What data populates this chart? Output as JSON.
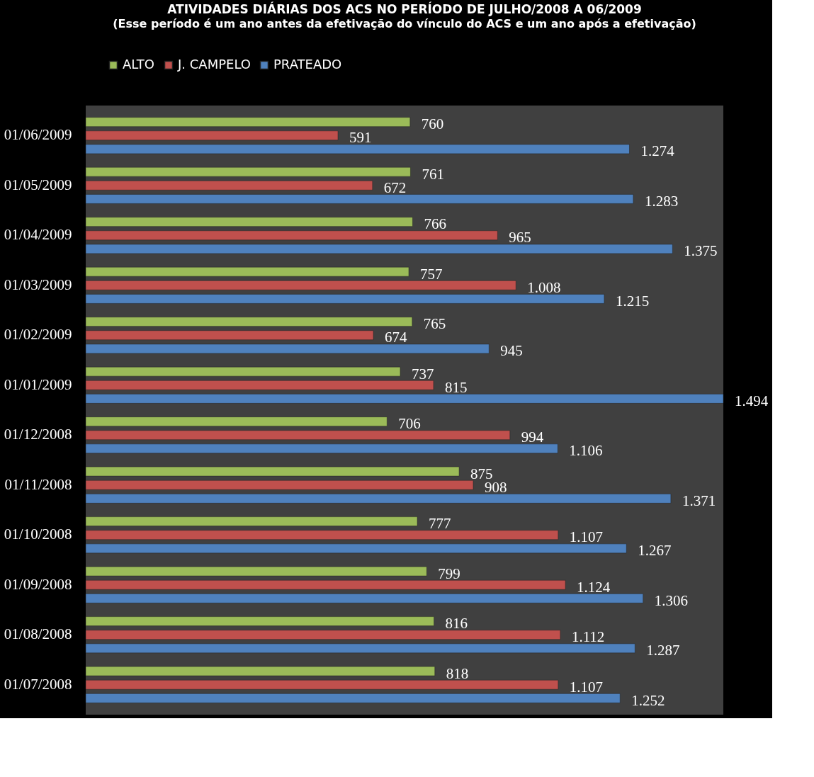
{
  "chart_data": {
    "type": "bar",
    "orientation": "horizontal",
    "title": "ATIVIDADES DIÁRIAS DOS ACS NO PERÍODO DE JULHO/2008 A 06/2009",
    "subtitle": "(Esse período é um ano antes da efetivação do vínculo do ACS e um ano após a efetivação)",
    "categories": [
      "01/06/2009",
      "01/05/2009",
      "01/04/2009",
      "01/03/2009",
      "01/02/2009",
      "01/01/2009",
      "01/12/2008",
      "01/11/2008",
      "01/10/2008",
      "01/09/2008",
      "01/08/2008",
      "01/07/2008"
    ],
    "series": [
      {
        "name": "ALTO",
        "color": "#9bbb59",
        "values": [
          760,
          761,
          766,
          757,
          765,
          737,
          706,
          875,
          777,
          799,
          816,
          818
        ],
        "value_labels": [
          "760",
          "761",
          "766",
          "757",
          "765",
          "737",
          "706",
          "875",
          "777",
          "799",
          "816",
          "818"
        ]
      },
      {
        "name": "J. CAMPELO",
        "color": "#c0504d",
        "values": [
          591,
          672,
          965,
          1008,
          674,
          815,
          994,
          908,
          1107,
          1124,
          1112,
          1107
        ],
        "value_labels": [
          "591",
          "672",
          "965",
          "1.008",
          "674",
          "815",
          "994",
          "908",
          "1.107",
          "1.124",
          "1.112",
          "1.107"
        ]
      },
      {
        "name": "PRATEADO",
        "color": "#4f81bd",
        "values": [
          1274,
          1283,
          1375,
          1215,
          945,
          1494,
          1106,
          1371,
          1267,
          1306,
          1287,
          1252
        ],
        "value_labels": [
          "1.274",
          "1.283",
          "1.375",
          "1.215",
          "945",
          "1.494",
          "1.106",
          "1.371",
          "1.267",
          "1.306",
          "1.287",
          "1.252"
        ]
      }
    ],
    "legend": "top",
    "tick_labels": "y",
    "grid": false
  }
}
